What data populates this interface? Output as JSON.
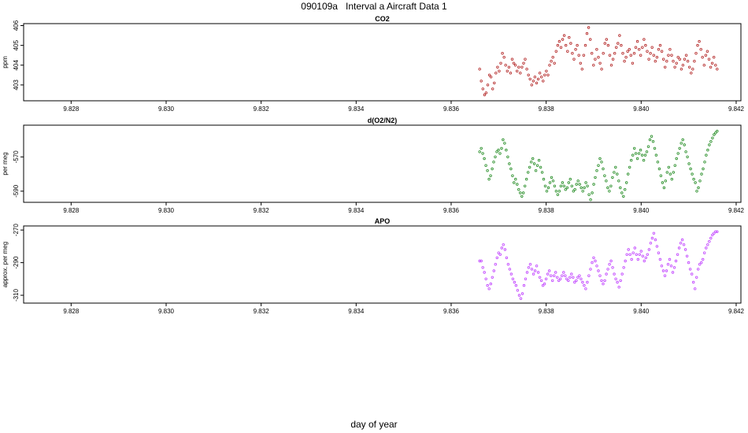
{
  "page": {
    "title": "090109a   Interval a Aircraft Data 1",
    "xlabel": "day of year"
  },
  "chart_data": [
    {
      "type": "scatter",
      "title": "CO2",
      "ylabel": "ppm",
      "color": "#b22222",
      "xlim": [
        9.827,
        9.8421
      ],
      "ylim": [
        402.2,
        406.1
      ],
      "xticks": [
        "9.828",
        "9.830",
        "9.832",
        "9.834",
        "9.836",
        "9.838",
        "9.840",
        "9.842"
      ],
      "yticks": [
        "403",
        "404",
        "405",
        "406"
      ],
      "x_start": 9.8366,
      "x_end": 9.8416,
      "values": [
        403.8,
        403.2,
        402.8,
        402.5,
        402.6,
        403.0,
        403.5,
        403.4,
        402.8,
        403.1,
        403.6,
        403.9,
        403.7,
        404.1,
        404.6,
        404.4,
        404.0,
        403.7,
        403.9,
        403.6,
        404.3,
        404.1,
        404.0,
        403.7,
        403.9,
        403.6,
        403.9,
        404.1,
        404.3,
        403.8,
        403.5,
        403.3,
        403.0,
        403.2,
        403.4,
        403.1,
        403.3,
        403.6,
        403.4,
        403.2,
        403.5,
        403.7,
        403.5,
        404.0,
        404.2,
        404.4,
        404.1,
        404.7,
        405.0,
        405.2,
        404.9,
        405.3,
        405.5,
        405.0,
        404.7,
        405.4,
        405.1,
        404.6,
        404.3,
        404.8,
        405.0,
        404.5,
        404.1,
        403.8,
        404.5,
        405.0,
        405.6,
        405.9,
        405.3,
        404.6,
        404.0,
        404.3,
        404.8,
        404.4,
        404.1,
        403.8,
        404.6,
        405.1,
        405.3,
        405.0,
        404.5,
        404.0,
        404.3,
        404.6,
        404.9,
        405.1,
        405.5,
        405.0,
        404.6,
        404.2,
        404.4,
        404.7,
        404.8,
        404.5,
        404.1,
        404.6,
        404.9,
        405.2,
        404.8,
        404.5,
        404.9,
        405.3,
        405.0,
        404.7,
        404.3,
        404.6,
        404.9,
        404.5,
        404.2,
        404.4,
        404.8,
        405.0,
        404.7,
        404.3,
        403.9,
        404.2,
        404.5,
        404.8,
        404.5,
        404.2,
        403.9,
        404.1,
        404.4,
        404.3,
        403.8,
        404.0,
        404.3,
        404.5,
        404.2,
        403.9,
        403.6,
        403.8,
        404.2,
        404.6,
        405.0,
        405.2,
        404.8,
        404.4,
        404.0,
        404.5,
        404.7,
        404.3,
        403.9,
        404.1,
        404.4,
        404.0,
        403.8
      ]
    },
    {
      "type": "scatter",
      "title": "d(O2/N2)",
      "ylabel": "per meg",
      "color": "#228b22",
      "xlim": [
        9.827,
        9.8421
      ],
      "ylim": [
        -596.5,
        -551.5
      ],
      "xticks": [
        "9.828",
        "9.830",
        "9.832",
        "9.834",
        "9.836",
        "9.838",
        "9.840",
        "9.842"
      ],
      "yticks": [
        "-570",
        "-590"
      ],
      "x_start": 9.8366,
      "x_end": 9.8416,
      "values": [
        -567,
        -565,
        -568,
        -571,
        -575,
        -578,
        -583,
        -581,
        -577,
        -573,
        -570,
        -567,
        -566,
        -568,
        -565,
        -560,
        -562,
        -566,
        -570,
        -574,
        -577,
        -581,
        -585,
        -583,
        -586,
        -589,
        -591,
        -593,
        -591,
        -587,
        -583,
        -579,
        -576,
        -573,
        -571,
        -574,
        -578,
        -575,
        -572,
        -576,
        -579,
        -583,
        -587,
        -590,
        -588,
        -585,
        -582,
        -584,
        -587,
        -590,
        -592,
        -590,
        -587,
        -585,
        -587,
        -589,
        -588,
        -585,
        -583,
        -587,
        -590,
        -589,
        -586,
        -584,
        -586,
        -588,
        -590,
        -588,
        -585,
        -587,
        -592,
        -595,
        -591,
        -586,
        -582,
        -578,
        -575,
        -571,
        -573,
        -577,
        -581,
        -584,
        -588,
        -590,
        -587,
        -582,
        -579,
        -576,
        -580,
        -584,
        -588,
        -591,
        -593,
        -589,
        -585,
        -580,
        -576,
        -572,
        -569,
        -565,
        -568,
        -571,
        -568,
        -566,
        -569,
        -572,
        -569,
        -567,
        -564,
        -560,
        -558,
        -561,
        -565,
        -569,
        -573,
        -577,
        -581,
        -585,
        -588,
        -584,
        -579,
        -576,
        -580,
        -583,
        -579,
        -575,
        -571,
        -568,
        -565,
        -562,
        -560,
        -563,
        -567,
        -570,
        -574,
        -577,
        -580,
        -583,
        -585,
        -590,
        -588,
        -584,
        -580,
        -577,
        -573,
        -569,
        -566,
        -563,
        -561,
        -559,
        -557,
        -556,
        -555
      ]
    },
    {
      "type": "scatter",
      "title": "APO",
      "ylabel": "approx. per meg",
      "color": "#c040ff",
      "xlim": [
        9.827,
        9.8421
      ],
      "ylim": [
        -314.8,
        -267.5
      ],
      "xticks": [
        "9.828",
        "9.830",
        "9.832",
        "9.834",
        "9.836",
        "9.838",
        "9.840",
        "9.842"
      ],
      "yticks": [
        "-270",
        "-290",
        "-310"
      ],
      "x_start": 9.8366,
      "x_end": 9.8416,
      "values": [
        -289,
        -289,
        -293,
        -296,
        -300,
        -304,
        -306,
        -303,
        -299,
        -295,
        -291,
        -287,
        -284,
        -285,
        -281,
        -279,
        -282,
        -287,
        -291,
        -294,
        -297,
        -300,
        -302,
        -304,
        -307,
        -310,
        -312,
        -309,
        -304,
        -300,
        -296,
        -293,
        -291,
        -294,
        -297,
        -295,
        -292,
        -296,
        -299,
        -301,
        -304,
        -303,
        -300,
        -297,
        -295,
        -298,
        -301,
        -298,
        -296,
        -299,
        -301,
        -300,
        -298,
        -296,
        -298,
        -300,
        -301,
        -299,
        -297,
        -299,
        -302,
        -301,
        -299,
        -298,
        -300,
        -302,
        -304,
        -306,
        -302,
        -298,
        -294,
        -290,
        -287,
        -289,
        -292,
        -295,
        -298,
        -301,
        -303,
        -301,
        -297,
        -294,
        -291,
        -289,
        -293,
        -297,
        -300,
        -302,
        -305,
        -301,
        -297,
        -293,
        -289,
        -285,
        -282,
        -285,
        -288,
        -284,
        -281,
        -285,
        -288,
        -285,
        -283,
        -286,
        -289,
        -287,
        -285,
        -282,
        -278,
        -275,
        -272,
        -276,
        -280,
        -284,
        -288,
        -292,
        -295,
        -298,
        -295,
        -291,
        -288,
        -292,
        -296,
        -293,
        -289,
        -285,
        -281,
        -278,
        -276,
        -279,
        -282,
        -286,
        -290,
        -294,
        -297,
        -302,
        -306,
        -299,
        -294,
        -291,
        -290,
        -288,
        -284,
        -281,
        -279,
        -277,
        -275,
        -273,
        -272,
        -271,
        -271
      ]
    }
  ]
}
